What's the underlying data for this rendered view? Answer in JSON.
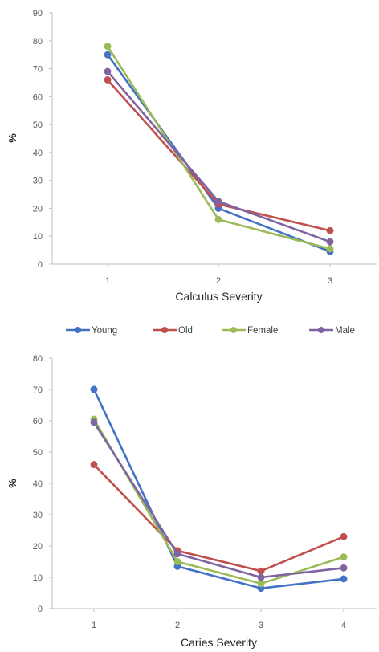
{
  "colors": {
    "Young": "#4472C4",
    "Old": "#C0504D",
    "Female": "#9BBB59",
    "Male": "#8064A2"
  },
  "legend": {
    "position": "between-charts",
    "entries": [
      "Young",
      "Old",
      "Female",
      "Male"
    ]
  },
  "chart_data": [
    {
      "type": "line",
      "xlabel": "Calculus Severity",
      "ylabel": "%",
      "categories": [
        "1",
        "2",
        "3"
      ],
      "ylim": [
        0,
        90
      ],
      "yticks": [
        0,
        10,
        20,
        30,
        40,
        50,
        60,
        70,
        80,
        90
      ],
      "grid": false,
      "series": [
        {
          "name": "Young",
          "values": [
            75,
            20,
            4.5
          ]
        },
        {
          "name": "Old",
          "values": [
            66,
            21.5,
            12
          ]
        },
        {
          "name": "Female",
          "values": [
            78,
            16,
            5.5
          ]
        },
        {
          "name": "Male",
          "values": [
            69,
            22.5,
            8
          ]
        }
      ]
    },
    {
      "type": "line",
      "xlabel": "Caries Severity",
      "ylabel": "%",
      "categories": [
        "1",
        "2",
        "3",
        "4"
      ],
      "ylim": [
        0,
        80
      ],
      "yticks": [
        0,
        10,
        20,
        30,
        40,
        50,
        60,
        70,
        80
      ],
      "grid": false,
      "series": [
        {
          "name": "Young",
          "values": [
            70,
            13.5,
            6.5,
            9.5
          ]
        },
        {
          "name": "Old",
          "values": [
            46,
            18.5,
            12,
            23
          ]
        },
        {
          "name": "Female",
          "values": [
            60.5,
            15,
            8,
            16.5
          ]
        },
        {
          "name": "Male",
          "values": [
            59.5,
            17.5,
            10,
            13
          ]
        }
      ]
    }
  ]
}
